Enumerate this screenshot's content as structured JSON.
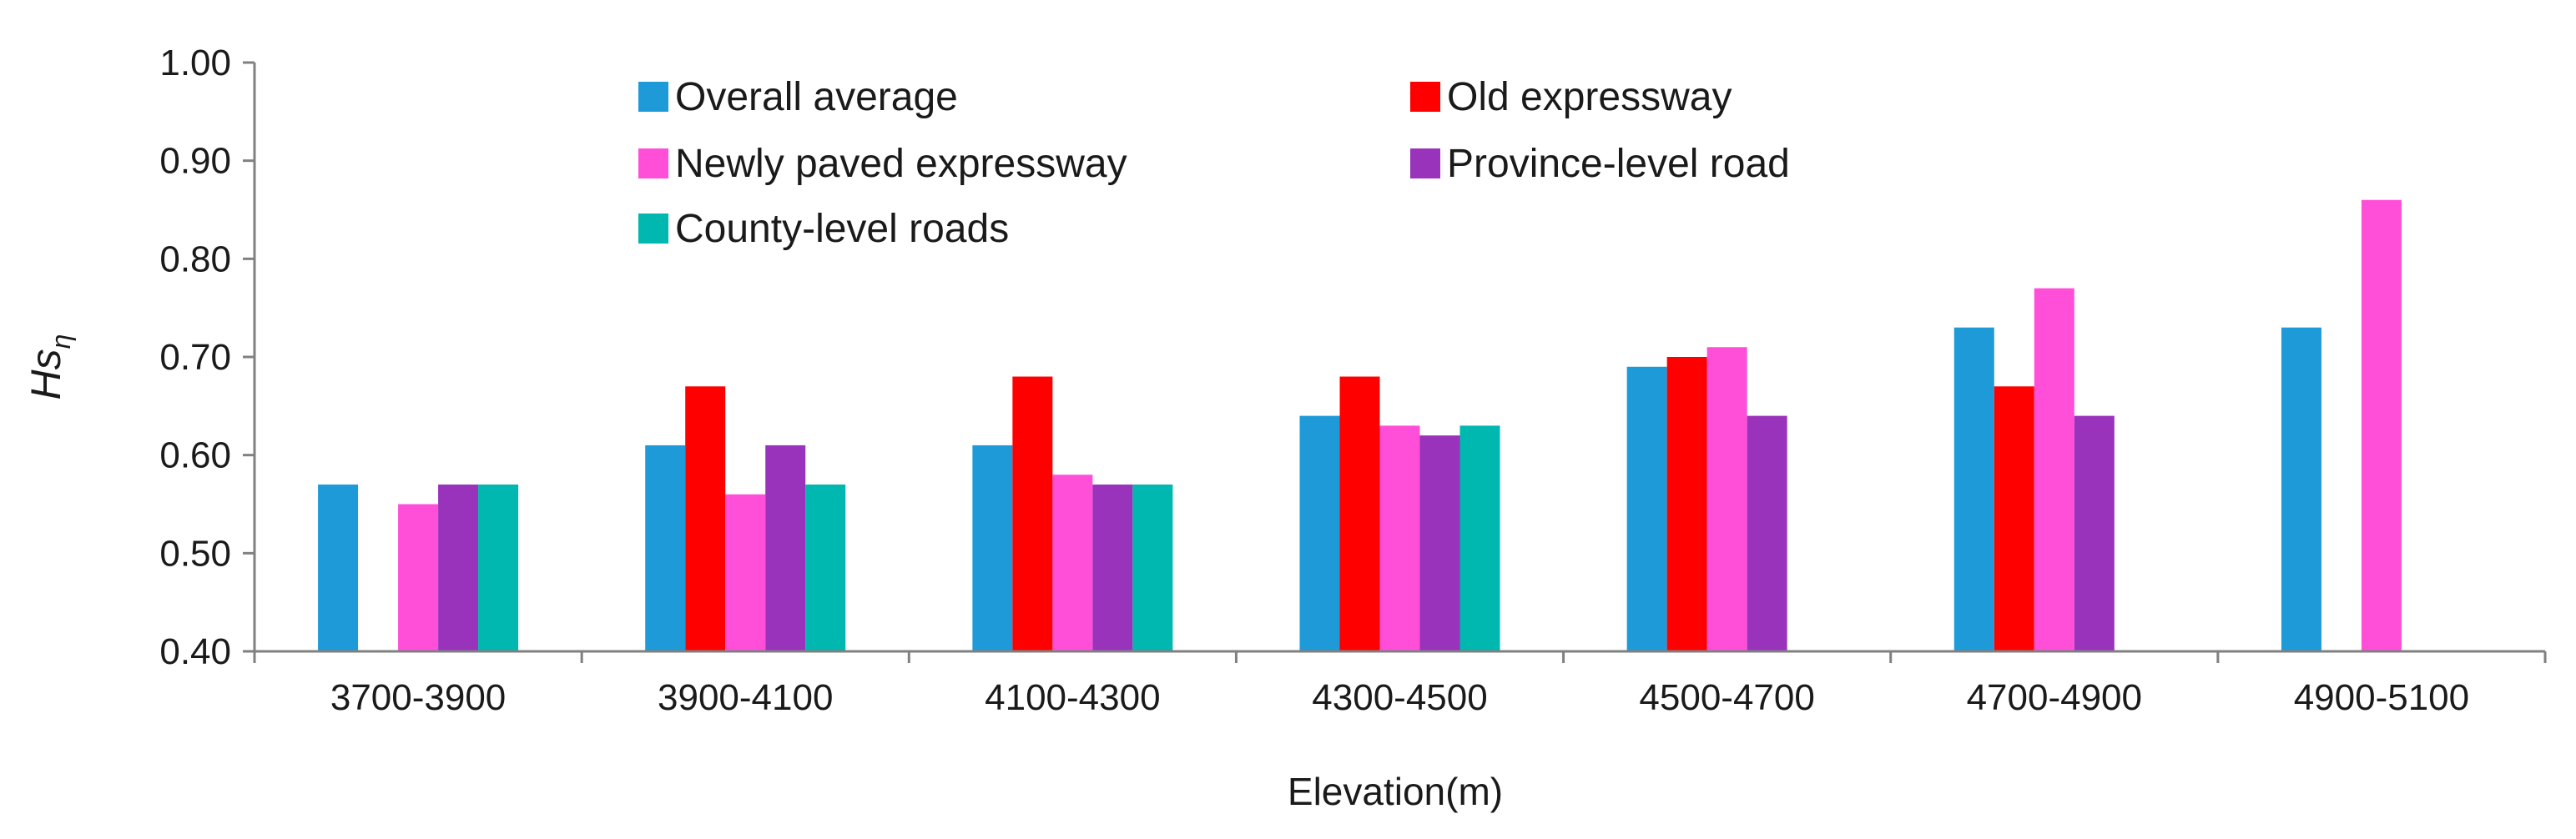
{
  "chart_data": {
    "type": "bar",
    "title": "",
    "xlabel": "Elevation(m)",
    "ylabel": "Hs",
    "ylabel_subscript": "η",
    "ylim": [
      0.4,
      1.0
    ],
    "yticks": [
      "0.40",
      "0.50",
      "0.60",
      "0.70",
      "0.80",
      "0.90",
      "1.00"
    ],
    "grid": false,
    "legend_position": "top-center",
    "categories": [
      "3700-3900",
      "3900-4100",
      "4100-4300",
      "4300-4500",
      "4500-4700",
      "4700-4900",
      "4900-5100"
    ],
    "series": [
      {
        "name": "Overall average",
        "color": "#1f9ad9",
        "values": [
          0.57,
          0.61,
          0.61,
          0.64,
          0.69,
          0.73,
          0.73
        ]
      },
      {
        "name": "Old expressway",
        "color": "#ff0000",
        "values": [
          null,
          0.67,
          0.68,
          0.68,
          0.7,
          0.67,
          null
        ]
      },
      {
        "name": "Newly paved expressway",
        "color": "#ff4fd8",
        "values": [
          0.55,
          0.56,
          0.58,
          0.63,
          0.71,
          0.77,
          0.86
        ]
      },
      {
        "name": "Province-level road",
        "color": "#9933bb",
        "values": [
          0.57,
          0.61,
          0.57,
          0.62,
          0.64,
          0.64,
          null
        ]
      },
      {
        "name": "County-level roads",
        "color": "#00b8b0",
        "values": [
          0.57,
          0.57,
          0.57,
          0.63,
          null,
          null,
          null
        ]
      }
    ]
  }
}
